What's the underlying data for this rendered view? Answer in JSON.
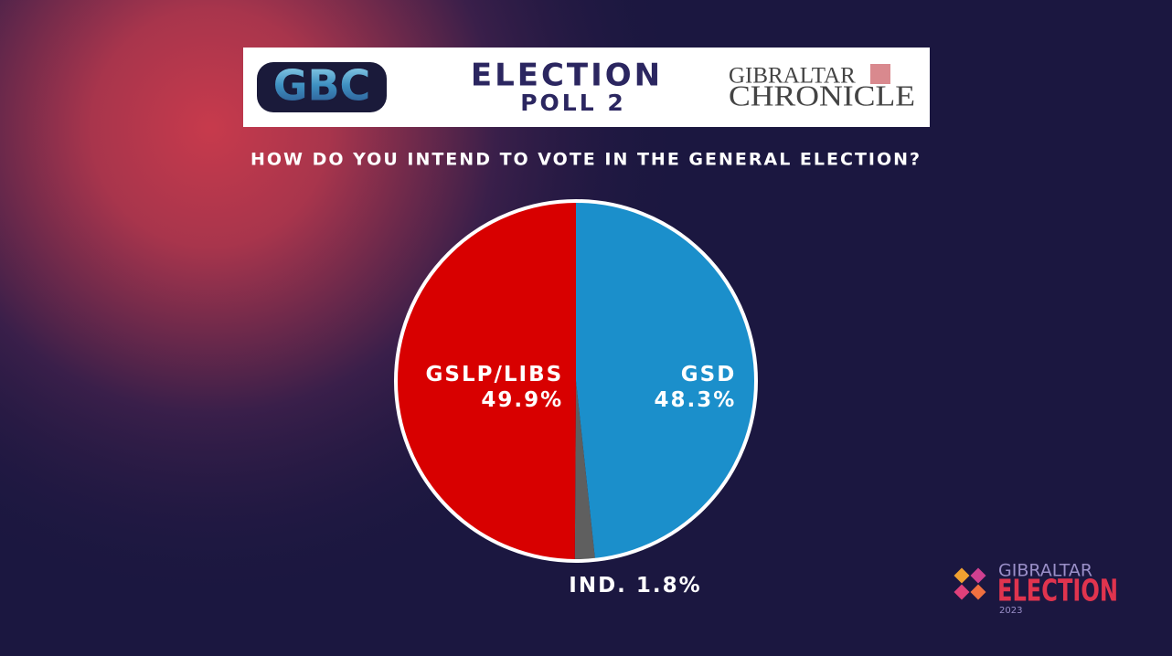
{
  "header": {
    "logo_left": "GBC",
    "title": "ELECTION",
    "subtitle": "POLL 2",
    "logo_right": {
      "line1": "GIBRALTAR",
      "line2": "CHRONICLE"
    }
  },
  "chart_data": {
    "type": "pie",
    "title": "HOW DO YOU INTEND TO VOTE IN THE GENERAL ELECTION?",
    "categories": [
      "GSD",
      "IND.",
      "GSLP/LIBS"
    ],
    "values": [
      48.3,
      1.8,
      49.9
    ],
    "value_labels": [
      "48.3%",
      "1.8%",
      "49.9%"
    ],
    "colors": [
      "#1b8fcb",
      "#5f5f5f",
      "#d80000"
    ]
  },
  "footer_logo": {
    "line1": "GIBRALTAR",
    "line2": "ELECTION",
    "line3": "2023"
  }
}
